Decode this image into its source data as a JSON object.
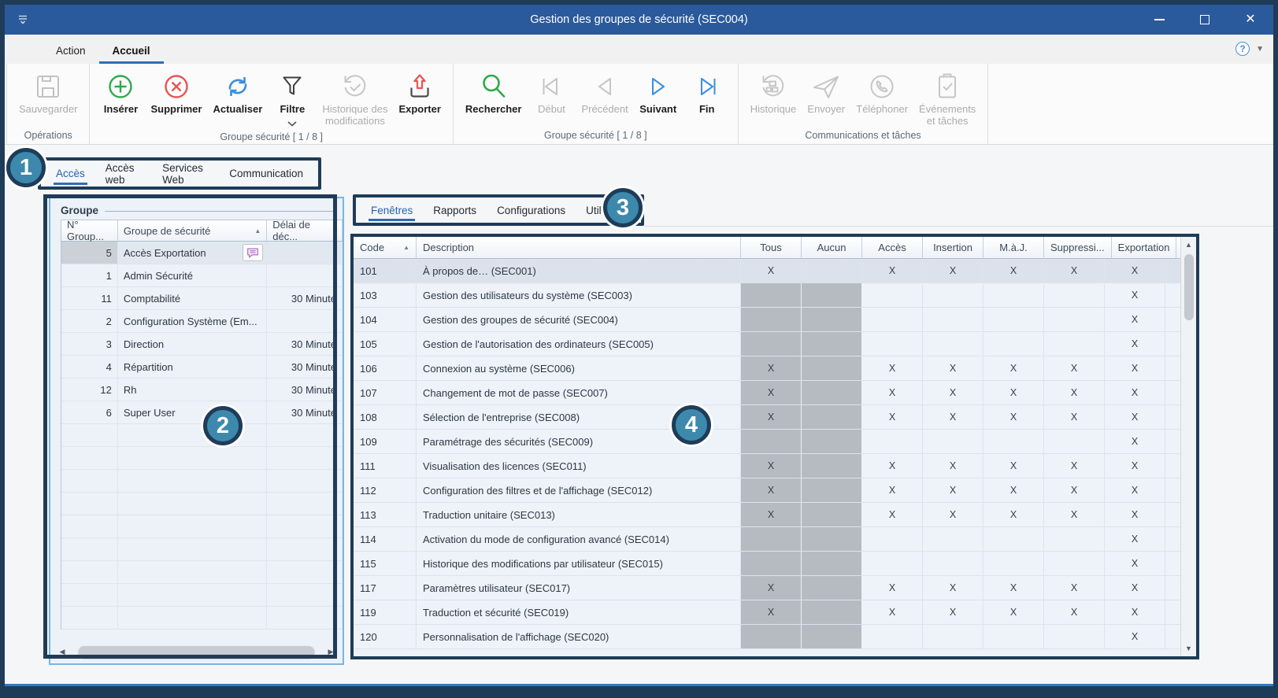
{
  "window": {
    "title": "Gestion des groupes de sécurité (SEC004)",
    "controls": [
      {
        "name": "minimize"
      },
      {
        "name": "maximize"
      },
      {
        "name": "close"
      }
    ]
  },
  "ribbon": {
    "tabs": [
      {
        "label": "Action",
        "active": false
      },
      {
        "label": "Accueil",
        "active": true
      }
    ],
    "help": {
      "icon": "help-icon",
      "chevron": "chevron-down-icon"
    },
    "groups": [
      {
        "label": "Opérations",
        "buttons": [
          {
            "label": "Sauvegarder",
            "icon": "save-icon",
            "enabled": false
          }
        ]
      },
      {
        "label": "Groupe sécurité [ 1 / 8 ]",
        "buttons": [
          {
            "label": "Insérer",
            "icon": "insert-icon",
            "enabled": true
          },
          {
            "label": "Supprimer",
            "icon": "delete-icon",
            "enabled": true
          },
          {
            "label": "Actualiser",
            "icon": "refresh-icon",
            "enabled": true
          },
          {
            "label": "Filtre",
            "icon": "filter-icon",
            "enabled": true,
            "dropdown": true
          },
          {
            "label": "Historique des\nmodifications",
            "icon": "history-check-icon",
            "enabled": false
          },
          {
            "label": "Exporter",
            "icon": "export-icon",
            "enabled": true
          }
        ]
      },
      {
        "label": "Groupe sécurité [ 1 / 8 ]",
        "buttons": [
          {
            "label": "Rechercher",
            "icon": "search-icon",
            "enabled": true
          },
          {
            "label": "Début",
            "icon": "first-icon",
            "enabled": false
          },
          {
            "label": "Précédent",
            "icon": "previous-icon",
            "enabled": false
          },
          {
            "label": "Suivant",
            "icon": "next-icon",
            "enabled": true
          },
          {
            "label": "Fin",
            "icon": "last-icon",
            "enabled": true
          }
        ]
      },
      {
        "label": "Communications et tâches",
        "buttons": [
          {
            "label": "Historique",
            "icon": "history-comm-icon",
            "enabled": false
          },
          {
            "label": "Envoyer",
            "icon": "send-icon",
            "enabled": false
          },
          {
            "label": "Téléphoner",
            "icon": "phone-icon",
            "enabled": false
          },
          {
            "label": "Événements\net tâches",
            "icon": "events-tasks-icon",
            "enabled": false
          }
        ]
      }
    ]
  },
  "subtabs_access": {
    "items": [
      {
        "label": "Accès",
        "active": true
      },
      {
        "label": "Accès web",
        "active": false
      },
      {
        "label": "Services Web",
        "active": false
      },
      {
        "label": "Communication",
        "active": false
      }
    ]
  },
  "subtabs_detail": {
    "items": [
      {
        "label": "Fenêtres",
        "active": true
      },
      {
        "label": "Rapports",
        "active": false
      },
      {
        "label": "Configurations",
        "active": false
      },
      {
        "label": "Utilisateurs",
        "active": false
      }
    ]
  },
  "group_panel": {
    "title": "Groupe",
    "columns": [
      "N° Group...",
      "Groupe de sécurité",
      "Délai de déc..."
    ],
    "sorted_column": 1,
    "rows": [
      {
        "num": "5",
        "name": "Accès Exportation",
        "delay": "",
        "note": true,
        "selected": true
      },
      {
        "num": "1",
        "name": "Admin Sécurité",
        "delay": ""
      },
      {
        "num": "11",
        "name": "Comptabilité",
        "delay": "30 Minute"
      },
      {
        "num": "2",
        "name": "Configuration Système (Em...",
        "delay": ""
      },
      {
        "num": "3",
        "name": "Direction",
        "delay": "30 Minute"
      },
      {
        "num": "4",
        "name": "Répartition",
        "delay": "30 Minute"
      },
      {
        "num": "12",
        "name": "Rh",
        "delay": "30 Minute"
      },
      {
        "num": "6",
        "name": "Super User",
        "delay": "30 Minute"
      }
    ]
  },
  "main_table": {
    "columns": [
      "Code",
      "Description",
      "Tous",
      "Aucun",
      "Accès",
      "Insertion",
      "M.à.J.",
      "Suppressi...",
      "Exportation"
    ],
    "sorted_column": 0,
    "gray_columns": [
      "Tous",
      "Aucun"
    ],
    "rows": [
      {
        "code": "101",
        "description": "À propos de… (SEC001)",
        "x": [
          "X",
          "",
          "X",
          "X",
          "X",
          "X",
          "X"
        ],
        "selected": true
      },
      {
        "code": "103",
        "description": "Gestion des utilisateurs du système (SEC003)",
        "x": [
          "",
          "",
          "",
          "",
          "",
          "",
          "X"
        ]
      },
      {
        "code": "104",
        "description": "Gestion des groupes de sécurité (SEC004)",
        "x": [
          "",
          "",
          "",
          "",
          "",
          "",
          "X"
        ]
      },
      {
        "code": "105",
        "description": "Gestion de l'autorisation des ordinateurs (SEC005)",
        "x": [
          "",
          "",
          "",
          "",
          "",
          "",
          "X"
        ]
      },
      {
        "code": "106",
        "description": "Connexion au système (SEC006)",
        "x": [
          "X",
          "",
          "X",
          "X",
          "X",
          "X",
          "X"
        ]
      },
      {
        "code": "107",
        "description": "Changement de mot de passe (SEC007)",
        "x": [
          "X",
          "",
          "X",
          "X",
          "X",
          "X",
          "X"
        ]
      },
      {
        "code": "108",
        "description": "Sélection de l'entreprise (SEC008)",
        "x": [
          "X",
          "",
          "X",
          "X",
          "X",
          "X",
          "X"
        ]
      },
      {
        "code": "109",
        "description": "Paramétrage des sécurités (SEC009)",
        "x": [
          "",
          "",
          "",
          "",
          "",
          "",
          "X"
        ]
      },
      {
        "code": "111",
        "description": "Visualisation des licences (SEC011)",
        "x": [
          "X",
          "",
          "X",
          "X",
          "X",
          "X",
          "X"
        ]
      },
      {
        "code": "112",
        "description": "Configuration des filtres et de l'affichage (SEC012)",
        "x": [
          "X",
          "",
          "X",
          "X",
          "X",
          "X",
          "X"
        ]
      },
      {
        "code": "113",
        "description": "Traduction unitaire (SEC013)",
        "x": [
          "X",
          "",
          "X",
          "X",
          "X",
          "X",
          "X"
        ]
      },
      {
        "code": "114",
        "description": "Activation du mode de configuration avancé (SEC014)",
        "x": [
          "",
          "",
          "",
          "",
          "",
          "",
          "X"
        ]
      },
      {
        "code": "115",
        "description": "Historique des modifications par utilisateur (SEC015)",
        "x": [
          "",
          "",
          "",
          "",
          "",
          "",
          "X"
        ]
      },
      {
        "code": "117",
        "description": "Paramètres utilisateur (SEC017)",
        "x": [
          "X",
          "",
          "X",
          "X",
          "X",
          "X",
          "X"
        ]
      },
      {
        "code": "119",
        "description": "Traduction et sécurité (SEC019)",
        "x": [
          "X",
          "",
          "X",
          "X",
          "X",
          "X",
          "X"
        ]
      },
      {
        "code": "120",
        "description": "Personnalisation de l'affichage (SEC020)",
        "x": [
          "",
          "",
          "",
          "",
          "",
          "",
          "X"
        ]
      }
    ]
  },
  "callouts": [
    {
      "number": "1"
    },
    {
      "number": "2"
    },
    {
      "number": "3"
    },
    {
      "number": "4"
    }
  ],
  "colors": {
    "titlebar": "#2b5a9c",
    "frame_navy": "#1e3c58",
    "callout_teal": "#3d89ad",
    "active_tab_blue": "#2563ae",
    "panel_border_blue": "#79b6e2",
    "disabled_cell_gray": "#b6bbc2",
    "insert_green": "#2faa4a",
    "delete_red": "#e85450",
    "refresh_blue": "#3b8ede"
  }
}
